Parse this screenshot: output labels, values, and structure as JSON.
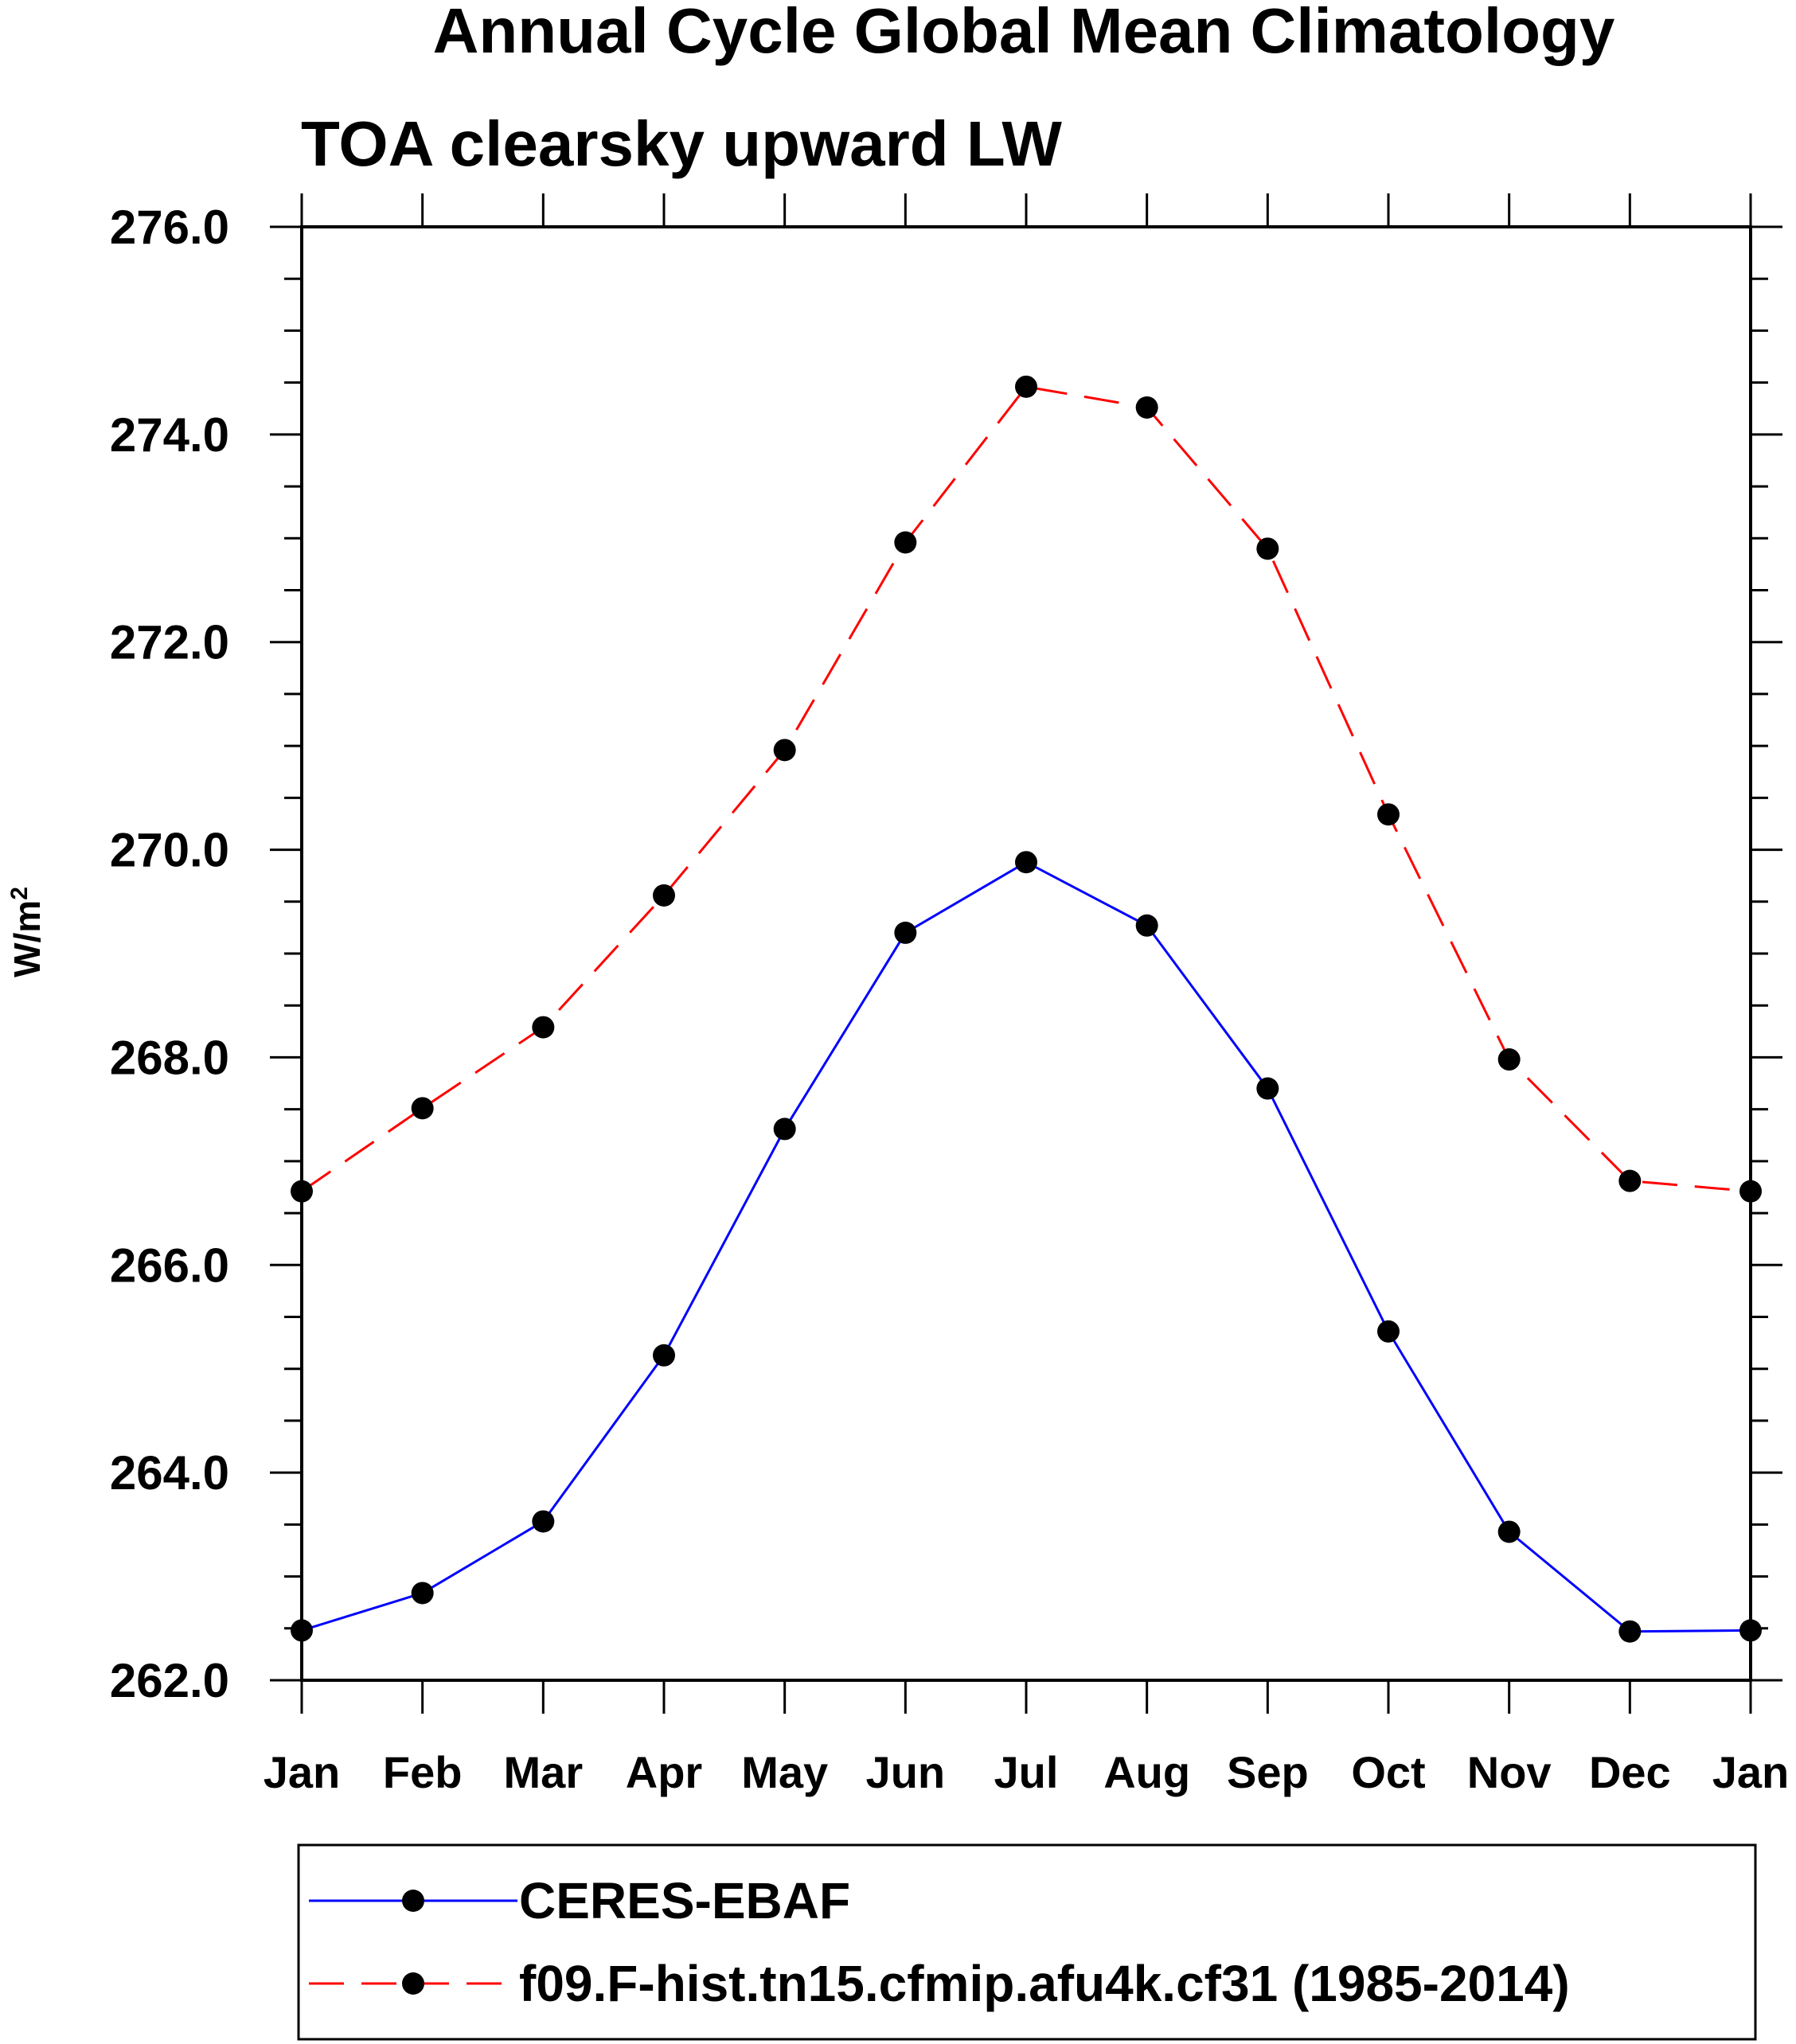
{
  "chart_data": {
    "type": "line",
    "title": "Annual Cycle Global Mean Climatology",
    "subtitle": "TOA clearsky upward LW",
    "xlabel": "",
    "ylabel": "W/m",
    "ylabel_superscript": "2",
    "categories": [
      "Jan",
      "Feb",
      "Mar",
      "Apr",
      "May",
      "Jun",
      "Jul",
      "Aug",
      "Sep",
      "Oct",
      "Nov",
      "Dec",
      "Jan"
    ],
    "ylim": [
      262.0,
      276.0
    ],
    "y_major_ticks": [
      262.0,
      264.0,
      266.0,
      268.0,
      270.0,
      272.0,
      274.0,
      276.0
    ],
    "y_major_tick_labels": [
      "262.0",
      "264.0",
      "266.0",
      "268.0",
      "270.0",
      "272.0",
      "274.0",
      "276.0"
    ],
    "y_minor_step": 0.5,
    "grid": false,
    "legend_position": "bottom",
    "series": [
      {
        "name": "CERES-EBAF",
        "color": "#0000ff",
        "dash": "solid",
        "marker_color": "#000000",
        "values": [
          262.48,
          262.84,
          263.53,
          265.13,
          267.31,
          269.2,
          269.88,
          269.27,
          267.7,
          265.36,
          263.43,
          262.47,
          262.48
        ]
      },
      {
        "name": "f09.F-hist.tn15.cfmip.afu4k.cf31 (1985-2014)",
        "color": "#ff0000",
        "dash": "dashed",
        "marker_color": "#000000",
        "values": [
          266.71,
          267.51,
          268.29,
          269.56,
          270.96,
          272.96,
          274.46,
          274.26,
          272.9,
          270.34,
          267.98,
          266.81,
          266.71
        ]
      }
    ]
  }
}
